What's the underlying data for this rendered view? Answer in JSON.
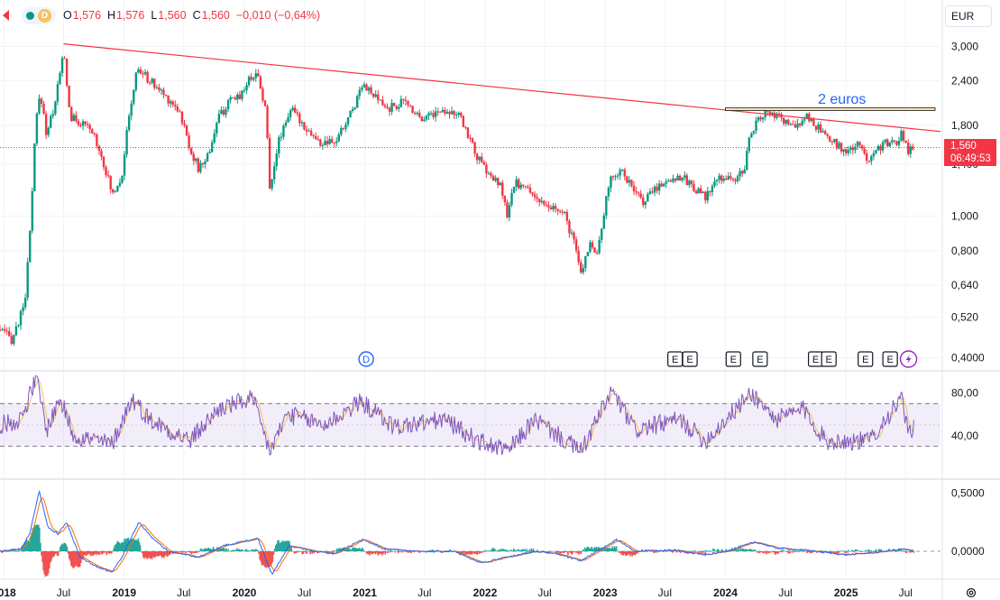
{
  "header": {
    "interval": "D",
    "open_label": "O",
    "open": "1,576",
    "high_label": "H",
    "high": "1,576",
    "low_label": "L",
    "low": "1,560",
    "close_label": "C",
    "close": "1,560",
    "change": "−0,010 (−0,64%)"
  },
  "currency": "EUR",
  "last_price": {
    "price": "1,560",
    "countdown": "06:49:53"
  },
  "colors": {
    "up": "#089981",
    "down": "#f23645",
    "rsi": "#7e57c2",
    "rsi_ma": "#f7c15c",
    "macd": "#2962ff",
    "signal": "#ff6d00",
    "trendline": "#f23645",
    "annotation": "#2962ff"
  },
  "icons": [
    "gear-icon",
    "lightning-icon",
    "dividend-icon",
    "earnings-icon"
  ],
  "chart_data": [
    {
      "type": "candlestick",
      "name": "price",
      "y_scale": "log",
      "ylim": [
        0.37,
        3.4
      ],
      "y_ticks": [
        "3,000",
        "2,400",
        "1,800",
        "1,400",
        "1,000",
        "0,800",
        "0,640",
        "0,520",
        "0,4000"
      ],
      "y_tick_values": [
        3.0,
        2.4,
        1.8,
        1.4,
        1.0,
        0.8,
        0.64,
        0.52,
        0.4
      ],
      "x_range": [
        "2017-12-20",
        "2025-10-15"
      ],
      "x_ticks": [
        "2018",
        "Jul",
        "2019",
        "Jul",
        "2020",
        "Jul",
        "2021",
        "Jul",
        "2022",
        "Jul",
        "2023",
        "Jul",
        "2024",
        "Jul",
        "2025",
        "Jul"
      ],
      "x_tick_dates": [
        "2018-01-01",
        "2018-07-01",
        "2019-01-01",
        "2019-07-01",
        "2020-01-01",
        "2020-07-01",
        "2021-01-01",
        "2021-07-01",
        "2022-01-01",
        "2022-07-01",
        "2023-01-01",
        "2023-07-01",
        "2024-01-01",
        "2024-07-01",
        "2025-01-01",
        "2025-07-01"
      ],
      "close_path": [
        [
          "2017-12-20",
          0.48
        ],
        [
          "2018-01-25",
          0.45
        ],
        [
          "2018-02-20",
          0.52
        ],
        [
          "2018-03-10",
          0.62
        ],
        [
          "2018-03-25",
          1.0
        ],
        [
          "2018-04-10",
          1.9
        ],
        [
          "2018-04-22",
          2.2
        ],
        [
          "2018-05-10",
          1.7
        ],
        [
          "2018-06-01",
          2.0
        ],
        [
          "2018-06-20",
          2.5
        ],
        [
          "2018-07-01",
          2.9
        ],
        [
          "2018-07-20",
          1.9
        ],
        [
          "2018-09-01",
          1.8
        ],
        [
          "2018-10-01",
          1.7
        ],
        [
          "2018-11-01",
          1.4
        ],
        [
          "2018-11-25",
          1.15
        ],
        [
          "2018-12-25",
          1.3
        ],
        [
          "2019-01-20",
          2.0
        ],
        [
          "2019-02-10",
          2.6
        ],
        [
          "2019-03-20",
          2.4
        ],
        [
          "2019-05-01",
          2.2
        ],
        [
          "2019-06-15",
          2.0
        ],
        [
          "2019-07-20",
          1.55
        ],
        [
          "2019-08-15",
          1.35
        ],
        [
          "2019-09-15",
          1.5
        ],
        [
          "2019-10-15",
          1.9
        ],
        [
          "2019-11-20",
          2.1
        ],
        [
          "2019-12-20",
          2.2
        ],
        [
          "2020-01-25",
          2.5
        ],
        [
          "2020-02-10",
          2.5
        ],
        [
          "2020-03-05",
          2.0
        ],
        [
          "2020-03-18",
          1.2
        ],
        [
          "2020-04-20",
          1.7
        ],
        [
          "2020-05-20",
          2.0
        ],
        [
          "2020-07-01",
          1.8
        ],
        [
          "2020-08-15",
          1.6
        ],
        [
          "2020-10-01",
          1.6
        ],
        [
          "2020-11-01",
          1.8
        ],
        [
          "2020-12-05",
          2.1
        ],
        [
          "2020-12-25",
          2.4
        ],
        [
          "2021-01-20",
          2.2
        ],
        [
          "2021-03-10",
          2.0
        ],
        [
          "2021-05-01",
          2.1
        ],
        [
          "2021-06-20",
          1.9
        ],
        [
          "2021-08-01",
          1.95
        ],
        [
          "2021-09-10",
          2.0
        ],
        [
          "2021-10-15",
          1.9
        ],
        [
          "2021-11-10",
          1.7
        ],
        [
          "2021-12-10",
          1.45
        ],
        [
          "2022-01-15",
          1.3
        ],
        [
          "2022-02-20",
          1.2
        ],
        [
          "2022-03-10",
          0.98
        ],
        [
          "2022-04-01",
          1.25
        ],
        [
          "2022-05-01",
          1.2
        ],
        [
          "2022-06-01",
          1.15
        ],
        [
          "2022-07-01",
          1.05
        ],
        [
          "2022-08-01",
          1.05
        ],
        [
          "2022-09-01",
          1.0
        ],
        [
          "2022-10-01",
          0.82
        ],
        [
          "2022-10-20",
          0.68
        ],
        [
          "2022-11-15",
          0.85
        ],
        [
          "2022-12-10",
          0.78
        ],
        [
          "2022-12-30",
          1.05
        ],
        [
          "2023-01-20",
          1.3
        ],
        [
          "2023-02-20",
          1.35
        ],
        [
          "2023-04-01",
          1.15
        ],
        [
          "2023-05-01",
          1.1
        ],
        [
          "2023-06-01",
          1.2
        ],
        [
          "2023-07-01",
          1.25
        ],
        [
          "2023-08-15",
          1.3
        ],
        [
          "2023-10-01",
          1.2
        ],
        [
          "2023-11-01",
          1.12
        ],
        [
          "2023-12-01",
          1.25
        ],
        [
          "2024-01-01",
          1.3
        ],
        [
          "2024-02-01",
          1.25
        ],
        [
          "2024-03-01",
          1.4
        ],
        [
          "2024-03-20",
          1.75
        ],
        [
          "2024-05-01",
          1.95
        ],
        [
          "2024-06-01",
          1.9
        ],
        [
          "2024-07-01",
          1.85
        ],
        [
          "2024-08-01",
          1.75
        ],
        [
          "2024-08-25",
          1.92
        ],
        [
          "2024-10-01",
          1.8
        ],
        [
          "2024-11-01",
          1.65
        ],
        [
          "2024-12-01",
          1.6
        ],
        [
          "2025-01-10",
          1.5
        ],
        [
          "2025-02-01",
          1.6
        ],
        [
          "2025-03-10",
          1.45
        ],
        [
          "2025-04-01",
          1.55
        ],
        [
          "2025-05-01",
          1.6
        ],
        [
          "2025-06-01",
          1.6
        ],
        [
          "2025-06-20",
          1.72
        ],
        [
          "2025-07-10",
          1.52
        ],
        [
          "2025-07-28",
          1.57
        ]
      ],
      "trendline": {
        "from": [
          "2018-07-01",
          3.05
        ],
        "to": [
          "2025-10-15",
          1.73
        ]
      },
      "annotation": {
        "text": "2 euros",
        "level": 2.0,
        "from": "2024-01-01",
        "to": "2025-10-15"
      },
      "current_price": 1.56
    },
    {
      "type": "line",
      "name": "RSI",
      "ylim": [
        0,
        100
      ],
      "y_ticks": [
        "80,00",
        "40,00"
      ],
      "y_tick_values": [
        80,
        40
      ],
      "band": [
        30,
        70
      ],
      "middle": 50,
      "anchors": [
        [
          "2017-12-20",
          50
        ],
        [
          "2018-02-20",
          55
        ],
        [
          "2018-04-10",
          95
        ],
        [
          "2018-05-10",
          45
        ],
        [
          "2018-06-20",
          75
        ],
        [
          "2018-08-01",
          40
        ],
        [
          "2018-11-25",
          32
        ],
        [
          "2019-01-25",
          75
        ],
        [
          "2019-03-20",
          55
        ],
        [
          "2019-07-20",
          35
        ],
        [
          "2019-10-15",
          65
        ],
        [
          "2020-01-25",
          75
        ],
        [
          "2020-03-18",
          25
        ],
        [
          "2020-05-10",
          60
        ],
        [
          "2020-09-01",
          50
        ],
        [
          "2020-12-20",
          72
        ],
        [
          "2021-04-01",
          48
        ],
        [
          "2021-09-01",
          55
        ],
        [
          "2021-12-10",
          35
        ],
        [
          "2022-03-10",
          25
        ],
        [
          "2022-06-01",
          55
        ],
        [
          "2022-10-20",
          25
        ],
        [
          "2023-01-20",
          82
        ],
        [
          "2023-04-01",
          45
        ],
        [
          "2023-08-15",
          55
        ],
        [
          "2023-11-01",
          35
        ],
        [
          "2024-03-20",
          80
        ],
        [
          "2024-06-01",
          55
        ],
        [
          "2024-08-25",
          65
        ],
        [
          "2024-11-01",
          35
        ],
        [
          "2025-03-10",
          35
        ],
        [
          "2025-06-20",
          75
        ],
        [
          "2025-07-10",
          38
        ],
        [
          "2025-07-28",
          52
        ]
      ]
    },
    {
      "type": "line",
      "name": "MACD",
      "ylim": [
        -0.24,
        0.62
      ],
      "y_ticks": [
        "0,5000",
        "0,0000"
      ],
      "y_tick_values": [
        0.5,
        0.0
      ],
      "anchors": [
        [
          "2017-12-20",
          0.0
        ],
        [
          "2018-02-20",
          0.02
        ],
        [
          "2018-03-20",
          0.15
        ],
        [
          "2018-04-18",
          0.52
        ],
        [
          "2018-05-15",
          0.2
        ],
        [
          "2018-06-15",
          0.15
        ],
        [
          "2018-07-10",
          0.25
        ],
        [
          "2018-08-20",
          -0.05
        ],
        [
          "2018-10-01",
          -0.12
        ],
        [
          "2018-11-25",
          -0.18
        ],
        [
          "2018-12-25",
          -0.05
        ],
        [
          "2019-02-15",
          0.25
        ],
        [
          "2019-04-01",
          0.1
        ],
        [
          "2019-05-15",
          0.0
        ],
        [
          "2019-08-15",
          -0.05
        ],
        [
          "2019-11-01",
          0.05
        ],
        [
          "2020-01-25",
          0.1
        ],
        [
          "2020-02-10",
          0.12
        ],
        [
          "2020-03-25",
          -0.2
        ],
        [
          "2020-05-15",
          0.05
        ],
        [
          "2020-08-01",
          0.0
        ],
        [
          "2020-10-01",
          -0.02
        ],
        [
          "2020-12-25",
          0.1
        ],
        [
          "2021-03-01",
          0.02
        ],
        [
          "2021-06-01",
          0.0
        ],
        [
          "2021-10-01",
          0.0
        ],
        [
          "2021-12-20",
          -0.1
        ],
        [
          "2022-03-10",
          -0.05
        ],
        [
          "2022-06-01",
          0.0
        ],
        [
          "2022-08-01",
          -0.02
        ],
        [
          "2022-10-20",
          -0.08
        ],
        [
          "2022-12-20",
          0.02
        ],
        [
          "2023-02-05",
          0.1
        ],
        [
          "2023-04-01",
          0.0
        ],
        [
          "2023-08-01",
          0.01
        ],
        [
          "2023-11-01",
          -0.03
        ],
        [
          "2024-01-01",
          0.0
        ],
        [
          "2024-04-01",
          0.08
        ],
        [
          "2024-06-01",
          0.03
        ],
        [
          "2024-10-01",
          0.0
        ],
        [
          "2025-01-01",
          -0.03
        ],
        [
          "2025-04-01",
          -0.01
        ],
        [
          "2025-06-20",
          0.02
        ],
        [
          "2025-07-28",
          0.0
        ]
      ]
    },
    {
      "type": "events",
      "name": "earnings-dividends",
      "dividends": [
        "2021-01-05"
      ],
      "earnings": [
        "2023-08-01",
        "2023-09-15",
        "2024-01-25",
        "2024-04-15",
        "2024-10-01",
        "2024-11-10",
        "2025-03-01",
        "2025-05-15"
      ],
      "lightning": [
        "2025-07-10"
      ],
      "labels": {
        "dividend": "D",
        "earnings": "E"
      }
    }
  ]
}
